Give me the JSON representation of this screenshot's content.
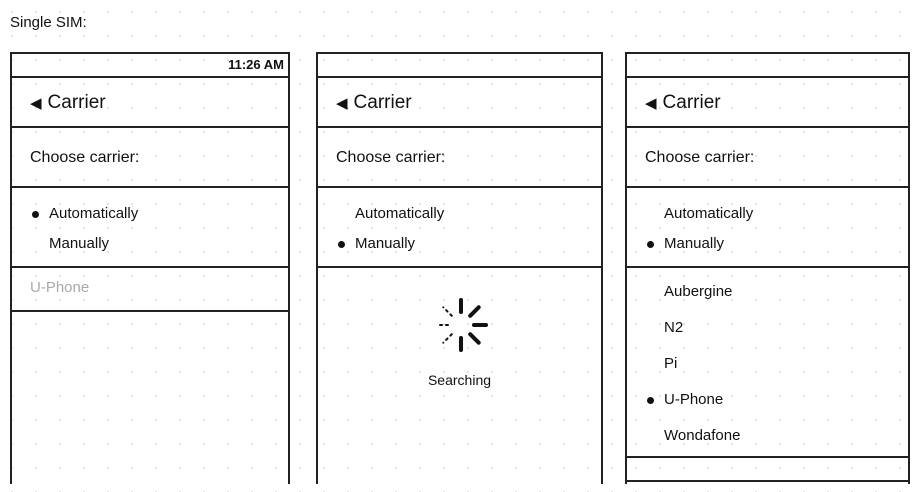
{
  "title": "Single SIM:",
  "screens": [
    {
      "status_time": "11:26 AM",
      "nav_title": "Carrier",
      "prompt": "Choose carrier:",
      "options": [
        {
          "label": "Automatically",
          "selected": true
        },
        {
          "label": "Manually",
          "selected": false
        }
      ],
      "current_carrier": "U-Phone"
    },
    {
      "status_time": "",
      "nav_title": "Carrier",
      "prompt": "Choose carrier:",
      "options": [
        {
          "label": "Automatically",
          "selected": false
        },
        {
          "label": "Manually",
          "selected": true
        }
      ],
      "searching_label": "Searching"
    },
    {
      "status_time": "",
      "nav_title": "Carrier",
      "prompt": "Choose carrier:",
      "options": [
        {
          "label": "Automatically",
          "selected": false
        },
        {
          "label": "Manually",
          "selected": true
        }
      ],
      "carriers": [
        {
          "label": "Aubergine",
          "selected": false
        },
        {
          "label": "N2",
          "selected": false
        },
        {
          "label": "Pi",
          "selected": false
        },
        {
          "label": "U-Phone",
          "selected": true
        },
        {
          "label": "Wondafone",
          "selected": false
        }
      ]
    }
  ],
  "icons": {
    "back": "back-triangle-icon",
    "spinner": "spinner-icon",
    "radio": "bullet-dot-icon"
  },
  "colors": {
    "disabled_text": "#aaaaaa"
  }
}
